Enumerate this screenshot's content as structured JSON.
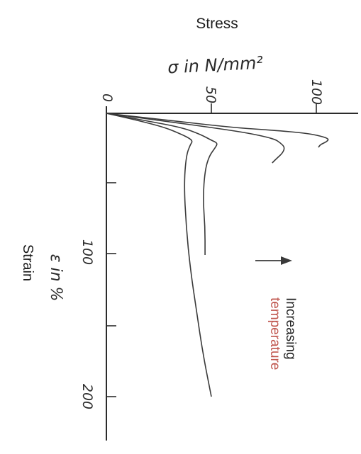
{
  "chart_data": {
    "type": "line",
    "orientation": "rotated",
    "stress_axis": {
      "title": "Stress",
      "label": "σ in N/mm²",
      "ticks": [
        0,
        50,
        100
      ],
      "range": [
        0,
        115
      ]
    },
    "strain_axis": {
      "title": "Strain",
      "label": "ε in %",
      "ticks": [
        100,
        200
      ],
      "minor_ticks": [
        50,
        150
      ],
      "range": [
        0,
        230
      ]
    },
    "annotation": {
      "line1": "Increasing",
      "line2": "temperature",
      "line2_color": "#c0574f"
    },
    "series": [
      {
        "points": [
          [
            0,
            0
          ],
          [
            5,
            30
          ],
          [
            10,
            60
          ],
          [
            12,
            80
          ],
          [
            14,
            95
          ],
          [
            16,
            102
          ],
          [
            18,
            106
          ],
          [
            20,
            105
          ],
          [
            22,
            102
          ],
          [
            24,
            101
          ]
        ]
      },
      {
        "points": [
          [
            0,
            0
          ],
          [
            5,
            25
          ],
          [
            10,
            50
          ],
          [
            14,
            68
          ],
          [
            18,
            80
          ],
          [
            21,
            83
          ],
          [
            24,
            85
          ],
          [
            28,
            84
          ],
          [
            32,
            81
          ],
          [
            35,
            79
          ]
        ]
      },
      {
        "points": [
          [
            0,
            0
          ],
          [
            5,
            18
          ],
          [
            10,
            36
          ],
          [
            15,
            45
          ],
          [
            19,
            50
          ],
          [
            21,
            53
          ],
          [
            24,
            52
          ],
          [
            30,
            49
          ],
          [
            40,
            47
          ],
          [
            60,
            46
          ],
          [
            80,
            47
          ],
          [
            100,
            47
          ]
        ]
      },
      {
        "points": [
          [
            0,
            0
          ],
          [
            5,
            15
          ],
          [
            10,
            28
          ],
          [
            15,
            36
          ],
          [
            18,
            40
          ],
          [
            20,
            41
          ],
          [
            22,
            40
          ],
          [
            30,
            38
          ],
          [
            50,
            37
          ],
          [
            80,
            38
          ],
          [
            110,
            40
          ],
          [
            140,
            43
          ],
          [
            170,
            46
          ],
          [
            200,
            50
          ]
        ]
      }
    ],
    "colors": {
      "axis": "#2b2b2b",
      "curves": "#3a3a3a"
    }
  }
}
